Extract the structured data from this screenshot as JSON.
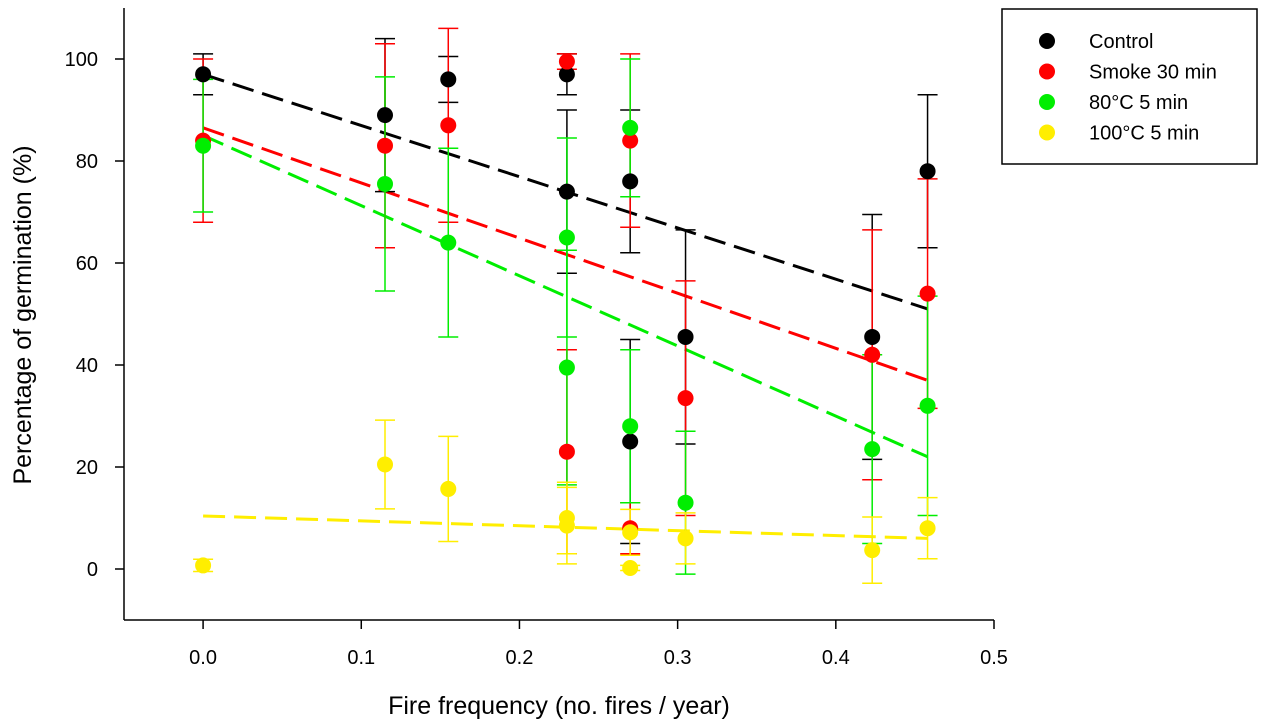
{
  "chart_data": {
    "type": "scatter",
    "title": "",
    "xlabel": "Fire frequency (no. fires / year)",
    "ylabel": "Percentage of germination (%)",
    "xlim": [
      -0.05,
      0.5
    ],
    "ylim": [
      -10,
      110
    ],
    "xticks": [
      "0.0",
      "0.1",
      "0.2",
      "0.3",
      "0.4",
      "0.5"
    ],
    "yticks": [
      "0",
      "20",
      "40",
      "60",
      "80",
      "100"
    ],
    "xtick_values": [
      0.0,
      0.1,
      0.2,
      0.3,
      0.4,
      0.5
    ],
    "ytick_values": [
      0,
      20,
      40,
      60,
      80,
      100
    ],
    "grid": false,
    "legend_position": "top-right",
    "series": [
      {
        "name": "Control",
        "color": "#000000",
        "x": [
          0.0,
          0.115,
          0.155,
          0.23,
          0.23,
          0.27,
          0.27,
          0.305,
          0.423,
          0.458
        ],
        "y": [
          97,
          89,
          96,
          97,
          74,
          76,
          25,
          45.5,
          45.5,
          78
        ],
        "err": [
          4,
          15,
          4.5,
          4,
          16,
          14,
          20,
          21,
          24,
          15
        ],
        "trend": [
          [
            0.0,
            97
          ],
          [
            0.458,
            51
          ]
        ]
      },
      {
        "name": "Smoke 30 min",
        "color": "#ff0000",
        "x": [
          0.0,
          0.115,
          0.155,
          0.23,
          0.23,
          0.27,
          0.27,
          0.305,
          0.423,
          0.458
        ],
        "y": [
          84,
          83,
          87,
          99.5,
          23,
          84,
          8,
          33.5,
          42,
          54
        ],
        "err": [
          16,
          20,
          19,
          1.5,
          20,
          17,
          5,
          23,
          24.5,
          22.5
        ],
        "trend": [
          [
            0.0,
            86.5
          ],
          [
            0.458,
            37
          ]
        ]
      },
      {
        "name": "80°C 5 min",
        "color": "#00ee00",
        "x": [
          0.0,
          0.115,
          0.155,
          0.23,
          0.23,
          0.27,
          0.27,
          0.305,
          0.423,
          0.458
        ],
        "y": [
          83,
          75.5,
          64,
          65,
          39.5,
          86.5,
          28,
          13,
          23.5,
          32
        ],
        "err": [
          13,
          21,
          18.5,
          19.5,
          23,
          13.5,
          15,
          14,
          18.5,
          21.5
        ],
        "trend": [
          [
            0.0,
            85
          ],
          [
            0.458,
            22
          ]
        ]
      },
      {
        "name": "100°C 5 min",
        "color": "#ffee00",
        "x": [
          0.0,
          0.115,
          0.155,
          0.23,
          0.23,
          0.27,
          0.27,
          0.305,
          0.423,
          0.458
        ],
        "y": [
          0.7,
          20.5,
          15.7,
          10,
          8.5,
          7.2,
          0.2,
          6,
          3.7,
          8
        ],
        "err": [
          1.2,
          8.7,
          10.3,
          7,
          7.5,
          4.5,
          0.5,
          5,
          6.5,
          6
        ],
        "trend": [
          [
            0.0,
            10.4
          ],
          [
            0.458,
            6
          ]
        ]
      }
    ]
  }
}
